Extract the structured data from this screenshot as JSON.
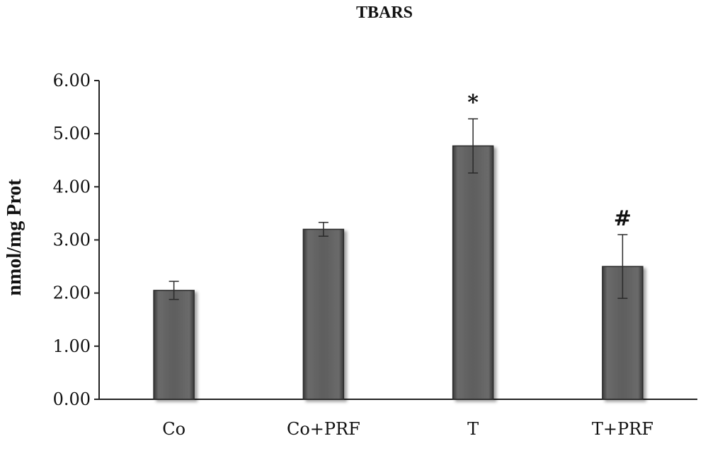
{
  "chart_data": {
    "type": "bar",
    "title": "TBARS",
    "ylabel": "nmol/mg Prot",
    "xlabel": "",
    "categories": [
      "Co",
      "Co+PRF",
      "T",
      "T+PRF"
    ],
    "values": [
      2.05,
      3.2,
      4.77,
      2.5
    ],
    "error": [
      0.17,
      0.13,
      0.51,
      0.6
    ],
    "annotations": [
      "",
      "",
      "*",
      "#"
    ],
    "ylim": [
      0,
      6
    ],
    "yticks": [
      "0.00",
      "1.00",
      "2.00",
      "3.00",
      "4.00",
      "5.00",
      "6.00"
    ],
    "grid": false,
    "bar_color": "#5e5e5e"
  }
}
